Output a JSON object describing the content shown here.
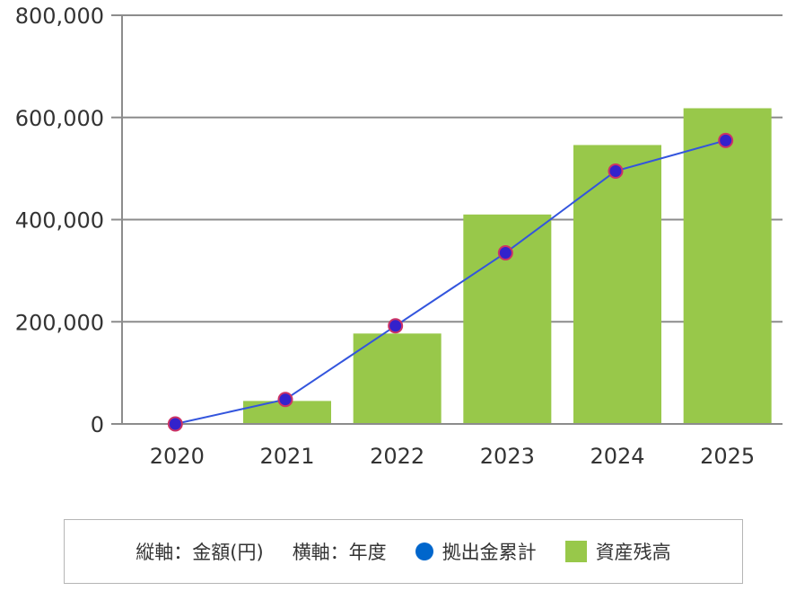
{
  "chart_data": {
    "type": "bar",
    "categories": [
      "2020",
      "2021",
      "2022",
      "2023",
      "2024",
      "2025"
    ],
    "series": [
      {
        "name": "資産残高",
        "type": "bar",
        "color": "#98c84a",
        "values": [
          0,
          45000,
          177000,
          410000,
          546000,
          618000
        ]
      },
      {
        "name": "拠出金累計",
        "type": "line",
        "color": "#0066cc",
        "line_color": "#3355dd",
        "marker_color": "#3322cc",
        "marker_edge_color": "#cc3366",
        "values": [
          0,
          48000,
          192000,
          335000,
          495000,
          555000
        ]
      }
    ],
    "ylim": [
      0,
      800000
    ],
    "yticks": [
      0,
      200000,
      400000,
      600000,
      800000
    ],
    "ytick_labels": [
      "0",
      "200,000",
      "400,000",
      "600,000",
      "800,000"
    ],
    "grid": "horizontal",
    "legend_position": "bottom",
    "ylabel_note": "縦軸：金額(円)",
    "xlabel_note": "横軸：年度"
  }
}
